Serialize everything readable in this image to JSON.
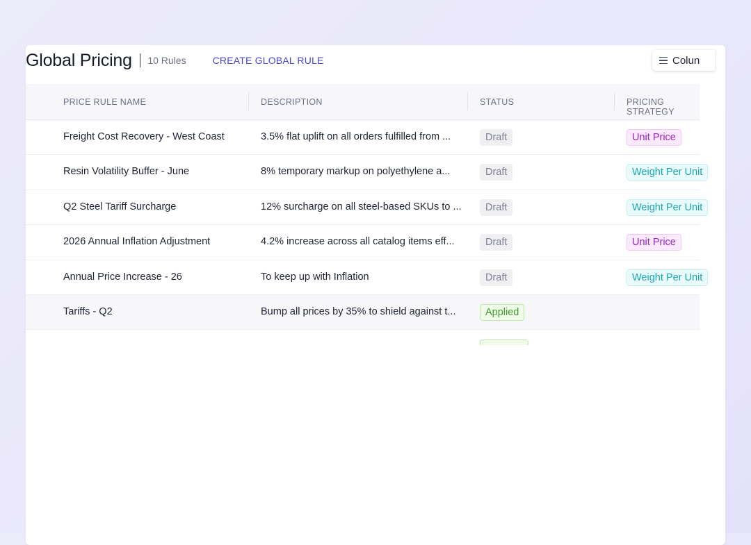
{
  "header": {
    "title": "Global Pricing",
    "rule_count": "10 Rules",
    "create_label": "CREATE GLOBAL RULE",
    "columns_label": "Colun"
  },
  "table": {
    "columns": [
      "PRICE RULE NAME",
      "DESCRIPTION",
      "STATUS",
      "PRICING STRATEGY"
    ],
    "rows": [
      {
        "name": "Freight Cost Recovery - West Coast",
        "description": "3.5% flat uplift on all orders fulfilled from ...",
        "status": "Draft",
        "strategy": "Unit Price"
      },
      {
        "name": "Resin Volatility Buffer - June",
        "description": "8% temporary markup on polyethylene a...",
        "status": "Draft",
        "strategy": "Weight Per Unit"
      },
      {
        "name": "Q2 Steel Tariff Surcharge",
        "description": "12% surcharge on all steel-based SKUs to ...",
        "status": "Draft",
        "strategy": "Weight Per Unit"
      },
      {
        "name": "2026 Annual Inflation Adjustment",
        "description": "4.2% increase across all catalog items eff...",
        "status": "Draft",
        "strategy": "Unit Price"
      },
      {
        "name": "Annual Price Increase - 26",
        "description": "To keep up with Inflation",
        "status": "Draft",
        "strategy": "Weight Per Unit"
      },
      {
        "name": "Tariffs - Q2",
        "description": "Bump all prices by 35% to shield against t...",
        "status": "Applied",
        "strategy": ""
      }
    ]
  },
  "colors": {
    "accent": "#4a45d8",
    "draft_bg": "#f0f0f3",
    "applied_text": "#3f9b2a",
    "unit_price_text": "#9c22c4",
    "weight_per_unit_text": "#1aa6b4"
  },
  "icons": {
    "columns": "hamburger-menu-icon"
  }
}
